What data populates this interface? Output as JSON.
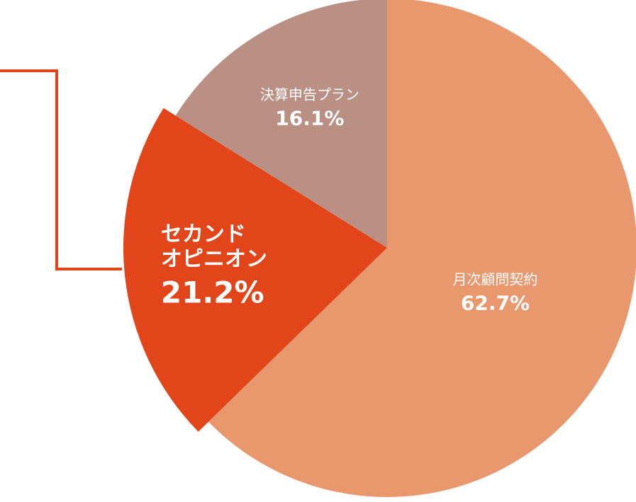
{
  "chart_data": {
    "type": "pie",
    "categories": [
      "月次顧問契約",
      "セカンド\nオピニオン",
      "決算申告プラン"
    ],
    "values": [
      62.7,
      21.2,
      16.1
    ],
    "value_labels": [
      "62.7%",
      "21.2%",
      "16.1%"
    ],
    "colors": [
      "#e9976d",
      "#e24519",
      "#b99083"
    ],
    "explode": [
      false,
      true,
      false
    ]
  }
}
